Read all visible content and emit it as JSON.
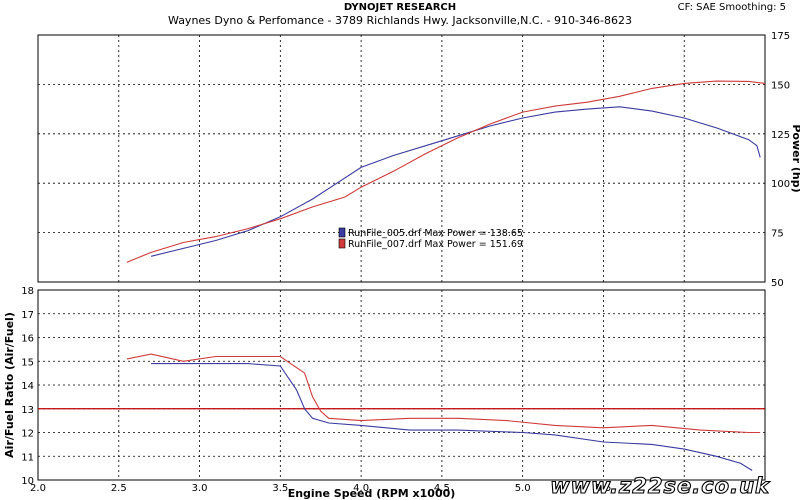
{
  "header": {
    "title": "DYNOJET RESEARCH",
    "subtitle": "Waynes Dyno & Perfomance - 3789 Richlands Hwy. Jacksonville,N.C. - 910-346-8623",
    "settings": "CF: SAE   Smoothing: 5"
  },
  "watermark": "www.z22se.co.uk",
  "colors": {
    "run1": "#3a3aa0",
    "run2": "#d03a3a",
    "ref_line": "#c00000",
    "grid": "#000000",
    "background": "#ffffff"
  },
  "chart_data": [
    {
      "type": "line",
      "name": "power",
      "ylabel": "Power (hp)",
      "ylim": [
        50,
        175
      ],
      "yticks": [
        50,
        75,
        100,
        125,
        150,
        175
      ],
      "xlim": [
        2.0,
        6.5
      ],
      "grid": true,
      "legend_position": "center",
      "legend": [
        "RunFile_005.drf Max Power = 138.65",
        "RunFile_007.drf Max Power = 151.69"
      ],
      "series": [
        {
          "name": "RunFile_005.drf",
          "color": "#3a3aa0",
          "x": [
            2.7,
            2.9,
            3.1,
            3.3,
            3.5,
            3.7,
            3.85,
            4.0,
            4.2,
            4.4,
            4.6,
            4.8,
            5.0,
            5.2,
            5.4,
            5.6,
            5.8,
            6.0,
            6.2,
            6.4,
            6.45,
            6.47
          ],
          "y": [
            63,
            67,
            71,
            76,
            83,
            92,
            100,
            108,
            114,
            119,
            124,
            129,
            133,
            136,
            137.5,
            138.65,
            136.5,
            133,
            128,
            122,
            119,
            113
          ]
        },
        {
          "name": "RunFile_007.drf",
          "color": "#d03a3a",
          "x": [
            2.55,
            2.7,
            2.9,
            3.1,
            3.3,
            3.5,
            3.7,
            3.9,
            4.0,
            4.2,
            4.4,
            4.6,
            4.8,
            5.0,
            5.2,
            5.4,
            5.6,
            5.8,
            6.0,
            6.2,
            6.4,
            6.5
          ],
          "y": [
            60,
            65,
            70,
            73,
            77,
            82,
            88,
            93,
            98,
            106,
            115,
            123,
            130,
            136,
            139,
            141,
            144,
            148,
            150.5,
            151.69,
            151.5,
            150.5
          ]
        }
      ]
    },
    {
      "type": "line",
      "name": "afr",
      "ylabel": "Air/Fuel Ratio (Air/Fuel)",
      "xlabel": "Engine Speed (RPM x1000)",
      "ylim": [
        10,
        18
      ],
      "yticks": [
        10,
        11,
        12,
        13,
        14,
        15,
        16,
        17,
        18
      ],
      "xlim": [
        2.0,
        6.5
      ],
      "xticks": [
        2.0,
        2.5,
        3.0,
        3.5,
        4.0,
        4.5,
        5.0,
        5.5
      ],
      "grid": true,
      "reference_line": 13.0,
      "series": [
        {
          "name": "RunFile_005.drf",
          "color": "#3a3aa0",
          "x": [
            2.7,
            3.0,
            3.3,
            3.5,
            3.6,
            3.65,
            3.7,
            3.8,
            4.0,
            4.3,
            4.6,
            5.0,
            5.2,
            5.5,
            5.8,
            6.0,
            6.2,
            6.35,
            6.42
          ],
          "y": [
            14.9,
            14.9,
            14.9,
            14.8,
            13.8,
            13.0,
            12.6,
            12.4,
            12.3,
            12.1,
            12.1,
            12.0,
            11.9,
            11.6,
            11.5,
            11.3,
            11.0,
            10.7,
            10.4
          ]
        },
        {
          "name": "RunFile_007.drf",
          "color": "#d03a3a",
          "x": [
            2.55,
            2.7,
            2.9,
            3.1,
            3.3,
            3.5,
            3.65,
            3.7,
            3.75,
            3.8,
            4.0,
            4.3,
            4.6,
            4.9,
            5.2,
            5.5,
            5.8,
            6.1,
            6.4,
            6.47
          ],
          "y": [
            15.1,
            15.3,
            15.0,
            15.2,
            15.2,
            15.2,
            14.5,
            13.5,
            12.9,
            12.6,
            12.5,
            12.6,
            12.6,
            12.5,
            12.3,
            12.2,
            12.3,
            12.1,
            12.0,
            12.0
          ]
        }
      ]
    }
  ]
}
